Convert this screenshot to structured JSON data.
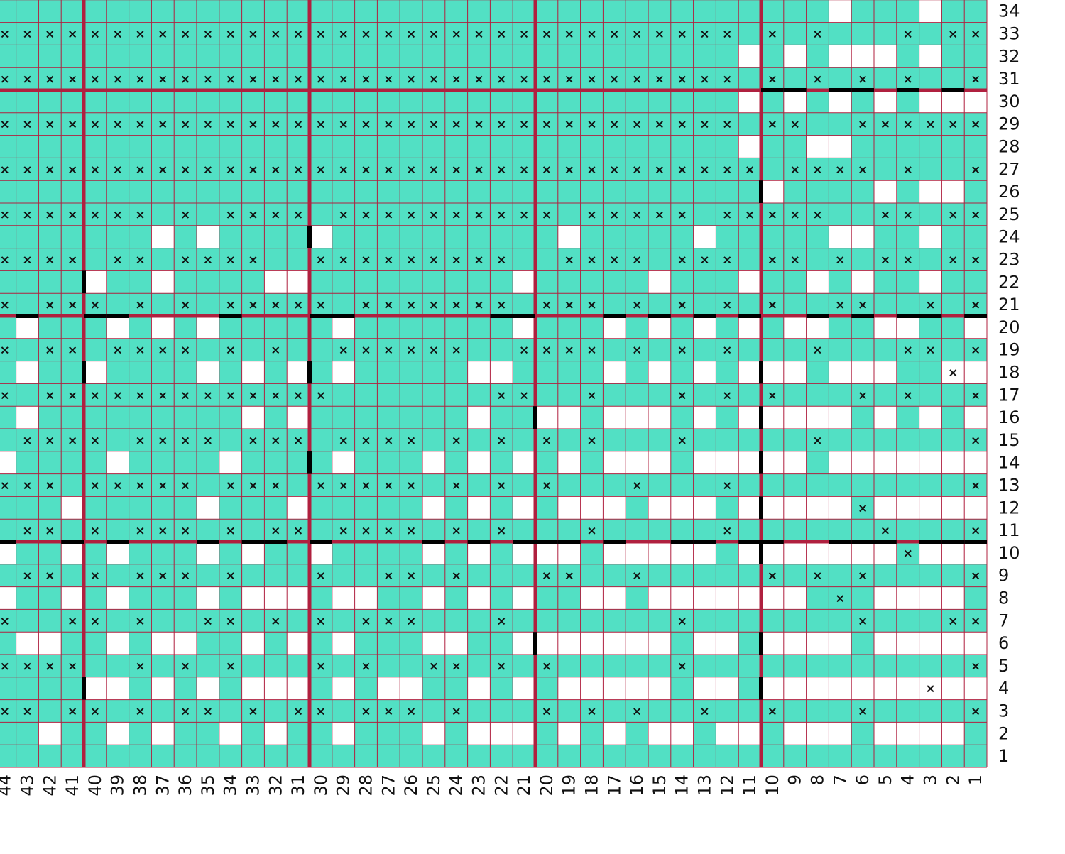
{
  "chart_data": {
    "type": "heatmap",
    "colors": {
      "filled": "#52e0c4",
      "empty": "#ffffff",
      "grid": "#b0203f",
      "bold_line": "#b0203f",
      "float_line": "#000000",
      "mark": "#111111"
    },
    "visible_columns": {
      "from": 1,
      "to": 44
    },
    "visible_rows": {
      "from": 1,
      "to": 34
    },
    "column_labels": [
      "1",
      "2",
      "3",
      "4",
      "5",
      "6",
      "7",
      "8",
      "9",
      "10",
      "11",
      "12",
      "13",
      "14",
      "15",
      "16",
      "17",
      "18",
      "19",
      "20",
      "21",
      "22",
      "23",
      "24",
      "25",
      "26",
      "27",
      "28",
      "29",
      "30",
      "31",
      "32",
      "33",
      "34",
      "35",
      "36",
      "37",
      "38",
      "39",
      "40",
      "41",
      "42",
      "43",
      "44"
    ],
    "row_labels": [
      "1",
      "2",
      "3",
      "4",
      "5",
      "6",
      "7",
      "8",
      "9",
      "10",
      "11",
      "12",
      "13",
      "14",
      "15",
      "16",
      "17",
      "18",
      "19",
      "20",
      "21",
      "22",
      "23",
      "24",
      "25",
      "26",
      "27",
      "28",
      "29",
      "30",
      "31",
      "32",
      "33",
      "34"
    ],
    "bold_every": 10,
    "white_cells": {
      "34": [
        3,
        7
      ],
      "32": [
        3,
        5,
        6,
        7,
        9,
        11
      ],
      "30": [
        1,
        2,
        3,
        5,
        7,
        9,
        11
      ],
      "28": [
        7,
        8,
        11
      ],
      "26": [
        2,
        3,
        5,
        10
      ],
      "24": [
        3,
        6,
        7,
        13,
        19,
        30,
        35,
        37
      ],
      "22": [
        3,
        6,
        8,
        11,
        15,
        21,
        31,
        32,
        37,
        40
      ],
      "20": [
        1,
        4,
        5,
        8,
        9,
        11,
        13,
        15,
        17,
        21,
        29,
        35,
        37,
        39,
        43
      ],
      "18": [
        1,
        2,
        5,
        6,
        7,
        9,
        10,
        11,
        13,
        15,
        17,
        22,
        23,
        29,
        31,
        33,
        35,
        40,
        43
      ],
      "16": [
        1,
        3,
        5,
        7,
        8,
        9,
        10,
        11,
        13,
        15,
        16,
        17,
        19,
        20,
        23,
        31,
        33,
        43
      ],
      "14": [
        1,
        2,
        3,
        4,
        5,
        6,
        7,
        9,
        10,
        11,
        12,
        13,
        15,
        16,
        17,
        19,
        21,
        23,
        25,
        29,
        34,
        39,
        44
      ],
      "12": [
        1,
        2,
        3,
        4,
        5,
        7,
        8,
        9,
        10,
        11,
        13,
        14,
        15,
        17,
        18,
        19,
        21,
        23,
        25,
        31,
        35,
        41
      ],
      "10": [
        1,
        2,
        3,
        5,
        6,
        7,
        8,
        9,
        10,
        11,
        13,
        14,
        15,
        16,
        17,
        19,
        20,
        21,
        23,
        25,
        30,
        33,
        35,
        39,
        41,
        44
      ],
      "8": [
        2,
        3,
        4,
        5,
        9,
        10,
        11,
        12,
        13,
        14,
        15,
        17,
        18,
        21,
        23,
        25,
        28,
        29,
        31,
        32,
        33,
        35,
        39,
        41,
        44
      ],
      "6": [
        1,
        2,
        3,
        4,
        5,
        7,
        8,
        9,
        10,
        12,
        13,
        15,
        16,
        17,
        18,
        19,
        20,
        21,
        24,
        25,
        29,
        31,
        33,
        36,
        37,
        39,
        42,
        43
      ],
      "4": [
        1,
        2,
        3,
        4,
        5,
        6,
        7,
        8,
        9,
        10,
        12,
        13,
        15,
        16,
        17,
        18,
        19,
        21,
        23,
        26,
        27,
        29,
        31,
        32,
        33,
        35,
        37,
        39,
        40
      ],
      "2": [
        2,
        3,
        4,
        5,
        7,
        8,
        9,
        11,
        12,
        14,
        15,
        17,
        19,
        21,
        22,
        23,
        25,
        29,
        32,
        34,
        37,
        39,
        42
      ]
    },
    "mark_cells": {
      "33": [
        1,
        2,
        4,
        8,
        10,
        12,
        13,
        14,
        15,
        16,
        17,
        18,
        19,
        20,
        21,
        22,
        23,
        24,
        25,
        26,
        27,
        28,
        29,
        30,
        31,
        32,
        33,
        34,
        35,
        36,
        37,
        38,
        39,
        40,
        41,
        42,
        43,
        44
      ],
      "31": [
        1,
        4,
        6,
        8,
        10,
        12,
        13,
        14,
        15,
        16,
        17,
        18,
        19,
        20,
        21,
        22,
        23,
        24,
        25,
        26,
        27,
        28,
        29,
        30,
        31,
        32,
        33,
        34,
        35,
        36,
        37,
        38,
        39,
        40,
        41,
        42,
        43,
        44
      ],
      "29": [
        1,
        2,
        3,
        4,
        5,
        6,
        9,
        10,
        12,
        13,
        14,
        15,
        16,
        17,
        18,
        19,
        20,
        21,
        22,
        23,
        24,
        25,
        26,
        27,
        28,
        29,
        30,
        31,
        32,
        33,
        34,
        35,
        36,
        37,
        38,
        39,
        40,
        41,
        42,
        43,
        44
      ],
      "27": [
        1,
        4,
        6,
        7,
        8,
        9,
        11,
        12,
        13,
        14,
        15,
        16,
        17,
        18,
        19,
        20,
        21,
        22,
        23,
        24,
        25,
        26,
        27,
        28,
        29,
        30,
        31,
        32,
        33,
        34,
        35,
        36,
        37,
        38,
        39,
        40,
        41,
        42,
        43,
        44
      ],
      "25": [
        1,
        2,
        4,
        5,
        8,
        9,
        10,
        11,
        12,
        14,
        15,
        16,
        17,
        18,
        20,
        21,
        22,
        23,
        24,
        25,
        26,
        27,
        28,
        29,
        31,
        32,
        33,
        34,
        36,
        38,
        39,
        40,
        41,
        42,
        43,
        44
      ],
      "23": [
        1,
        2,
        4,
        5,
        7,
        9,
        10,
        12,
        13,
        14,
        16,
        17,
        18,
        19,
        22,
        23,
        24,
        25,
        26,
        27,
        28,
        29,
        30,
        33,
        34,
        35,
        36,
        38,
        39,
        41,
        42,
        43,
        44
      ],
      "21": [
        1,
        3,
        6,
        7,
        10,
        12,
        14,
        16,
        18,
        19,
        20,
        22,
        23,
        24,
        25,
        26,
        27,
        28,
        30,
        31,
        32,
        33,
        34,
        36,
        38,
        40,
        41,
        42,
        44
      ],
      "19": [
        1,
        3,
        4,
        8,
        12,
        14,
        16,
        18,
        19,
        20,
        21,
        24,
        25,
        26,
        27,
        28,
        29,
        32,
        34,
        36,
        37,
        38,
        39,
        41,
        42,
        44
      ],
      "18": [
        2
      ],
      "17": [
        1,
        4,
        6,
        10,
        12,
        14,
        18,
        21,
        22,
        30,
        31,
        32,
        33,
        34,
        35,
        36,
        37,
        38,
        39,
        40,
        41,
        42,
        44
      ],
      "15": [
        1,
        8,
        14,
        18,
        20,
        22,
        24,
        26,
        27,
        28,
        29,
        31,
        32,
        33,
        35,
        36,
        37,
        38,
        40,
        41,
        42,
        43
      ],
      "13": [
        1,
        12,
        16,
        20,
        22,
        24,
        26,
        27,
        28,
        29,
        30,
        32,
        33,
        34,
        36,
        37,
        38,
        39,
        40,
        42,
        43,
        44
      ],
      "12": [
        6
      ],
      "11": [
        1,
        5,
        12,
        18,
        22,
        24,
        26,
        27,
        28,
        29,
        31,
        32,
        34,
        36,
        37,
        38,
        40,
        42,
        43
      ],
      "10": [
        4
      ],
      "9": [
        1,
        6,
        8,
        10,
        16,
        19,
        20,
        24,
        26,
        27,
        30,
        34,
        36,
        37,
        38,
        40,
        42,
        43
      ],
      "8": [
        7
      ],
      "7": [
        1,
        2,
        6,
        14,
        22,
        26,
        27,
        28,
        30,
        32,
        34,
        35,
        38,
        40,
        41,
        44
      ],
      "5": [
        1,
        14,
        20,
        22,
        24,
        25,
        28,
        30,
        34,
        36,
        38,
        41,
        42,
        43,
        44
      ],
      "4": [
        3
      ],
      "3": [
        1,
        6,
        10,
        13,
        16,
        18,
        20,
        24,
        26,
        27,
        28,
        30,
        31,
        33,
        35,
        36,
        38,
        40,
        41,
        43,
        44
      ]
    },
    "white_mark_cells": {
      "18": [
        2
      ],
      "12": [
        6
      ],
      "10": [
        4
      ],
      "8": [
        7
      ],
      "4": [
        3
      ]
    }
  }
}
